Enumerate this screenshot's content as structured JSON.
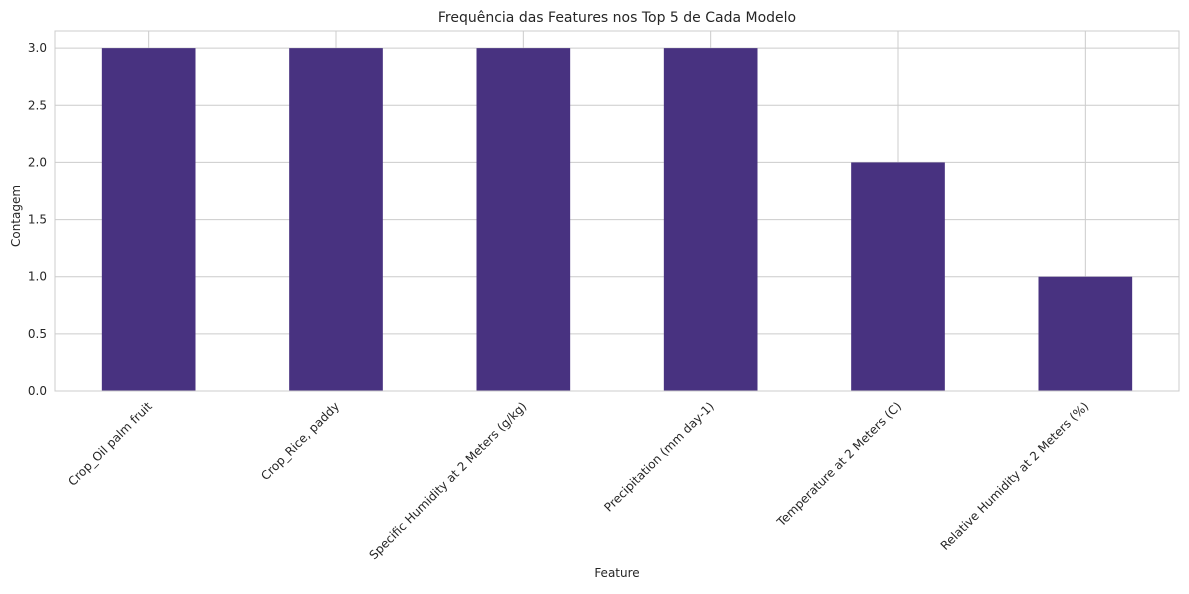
{
  "chart_data": {
    "type": "bar",
    "title": "Frequência das Features nos Top 5 de Cada Modelo",
    "xlabel": "Feature",
    "ylabel": "Contagem",
    "categories": [
      "Crop_Oil palm fruit",
      "Crop_Rice, paddy",
      "Specific Humidity at 2 Meters (g/kg)",
      "Precipitation (mm day-1)",
      "Temperature at 2 Meters (C)",
      "Relative Humidity at 2 Meters (%)"
    ],
    "values": [
      3,
      3,
      3,
      3,
      2,
      1
    ],
    "ylim": [
      0,
      3.15
    ],
    "yticks": [
      "0.0",
      "0.5",
      "1.0",
      "1.5",
      "2.0",
      "2.5",
      "3.0"
    ],
    "grid": true,
    "colors": {
      "bar": "#483280",
      "grid": "#cccccc",
      "axes": "#cccccc"
    }
  }
}
